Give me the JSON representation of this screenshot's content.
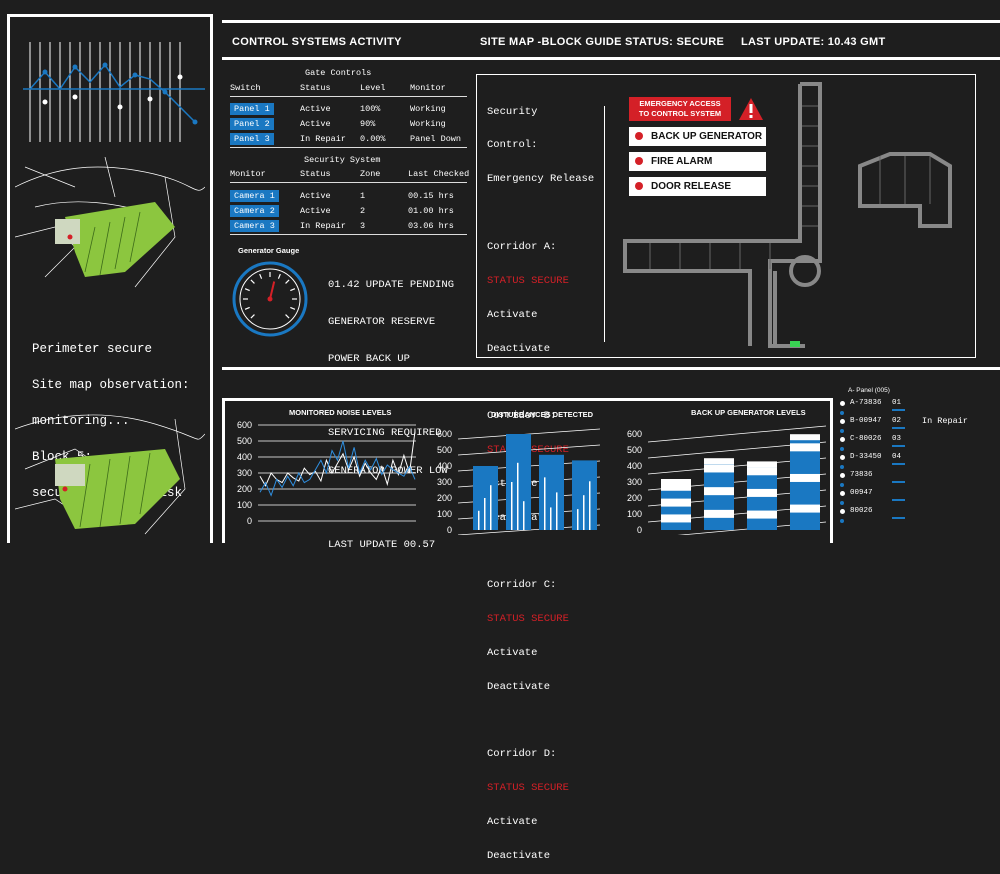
{
  "header": {
    "control": "CONTROL SYSTEMS ACTIVITY",
    "sitemap": "SITE MAP -BLOCK GUIDE",
    "status": "STATUS: SECURE",
    "last_update": "LAST UPDATE: 10.43 GMT"
  },
  "left_text": {
    "line1": "Perimeter secure",
    "line2": "Site map observation:",
    "line3": "monitoring...",
    "line4": "Block 5:",
    "line5": "security breach risk"
  },
  "gate": {
    "title": "Gate Controls",
    "cols": [
      "Switch",
      "Status",
      "Level",
      "Monitor"
    ],
    "rows": [
      {
        "name": "Panel 1",
        "status": "Active",
        "level": "100%",
        "monitor": "Working"
      },
      {
        "name": "Panel 2",
        "status": "Active",
        "level": "90%",
        "monitor": "Working"
      },
      {
        "name": "Panel 3",
        "status": "In Repair",
        "level": "0.00%",
        "monitor": "Panel Down"
      }
    ]
  },
  "security": {
    "title": "Security System",
    "cols": [
      "Monitor",
      "Status",
      "Zone",
      "Last Checked"
    ],
    "rows": [
      {
        "name": "Camera 1",
        "status": "Active",
        "zone": "1",
        "checked": "00.15 hrs"
      },
      {
        "name": "Camera 2",
        "status": "Active",
        "zone": "2",
        "checked": "01.00 hrs"
      },
      {
        "name": "Camera 3",
        "status": "In Repair",
        "zone": "3",
        "checked": "03.06 hrs"
      }
    ]
  },
  "generator": {
    "title": "Generator Gauge",
    "gauge_level": 0.55,
    "line1": "01.42 UPDATE PENDING",
    "line2": "GENERATOR RESERVE",
    "line3": "POWER BACK UP",
    "line4": "SERVICING REQUIRED",
    "line5": "GENERATOR POWER LOW",
    "line6": "LAST UPDATE 00.57"
  },
  "security_control": {
    "line1": "Security",
    "line2": "Control:",
    "line3": "Emergency Release",
    "corridors": [
      {
        "name": "Corridor A:",
        "status": "STATUS SECURE",
        "activate": "Activate",
        "deactivate": "Deactivate"
      },
      {
        "name": "Corridor B:",
        "status": "STATUS SECURE",
        "activate": "Activate",
        "deactivate": "Deactivate"
      },
      {
        "name": "Corridor C:",
        "status": "STATUS SECURE",
        "activate": "Activate",
        "deactivate": "Deactivate"
      },
      {
        "name": "Corridor D:",
        "status": "STATUS SECURE",
        "activate": "Activate",
        "deactivate": "Deactivate"
      }
    ]
  },
  "emergency": {
    "title1": "EMERGENCY ACCESS",
    "title2": "TO CONTROL SYSTEM",
    "buttons": [
      "BACK UP GENERATOR",
      "FIRE ALARM",
      "DOOR RELEASE"
    ]
  },
  "charts": {
    "noise": {
      "title": "MONITORED NOISE LEVELS",
      "yticks": [
        "600",
        "500",
        "400",
        "300",
        "200",
        "100",
        "0"
      ]
    },
    "disturbances": {
      "title": "DISTURBANCES DETECTED",
      "yticks": [
        "600",
        "500",
        "400",
        "300",
        "200",
        "100",
        "0"
      ]
    },
    "backup": {
      "title": "BACK UP GENERATOR LEVELS",
      "yticks": [
        "600",
        "500",
        "400",
        "300",
        "200",
        "100",
        "0"
      ]
    }
  },
  "chart_data": [
    {
      "type": "line",
      "title": "MONITORED NOISE LEVELS",
      "ylim": [
        0,
        600
      ],
      "series": [
        {
          "values": [
            280,
            220,
            300,
            260,
            240,
            300,
            270,
            250,
            330,
            290,
            310,
            250,
            380,
            300,
            360,
            420,
            320,
            400,
            280,
            360,
            300,
            260,
            340,
            230,
            380,
            290,
            410,
            300,
            560
          ]
        },
        {
          "values": [
            180,
            240,
            160,
            260,
            210,
            280,
            220,
            300,
            240,
            260,
            320,
            380,
            300,
            440,
            380,
            500,
            330,
            460,
            300,
            380,
            320,
            390,
            290,
            350,
            320,
            300,
            280,
            340,
            260
          ]
        }
      ]
    },
    {
      "type": "bar",
      "title": "DISTURBANCES DETECTED",
      "ylim": [
        0,
        600
      ],
      "values": [
        400,
        600,
        470,
        435
      ]
    },
    {
      "type": "bar",
      "title": "BACK UP GENERATOR LEVELS",
      "ylim": [
        0,
        600
      ],
      "values": [
        300,
        430,
        410,
        580
      ]
    }
  ],
  "panel_list": {
    "title": "A- Panel (005)",
    "items": [
      {
        "code": "A-73836",
        "num": "01"
      },
      {
        "code": "B-00947",
        "num": "02"
      },
      {
        "code": "C-80026",
        "num": "03"
      },
      {
        "code": "D-33450",
        "num": "04"
      },
      {
        "code": "73836",
        "num": ""
      },
      {
        "code": "00947",
        "num": ""
      },
      {
        "code": "80026",
        "num": ""
      }
    ],
    "status": "In Repair"
  },
  "colors": {
    "accent": "#1a78c2",
    "alert": "#d42027",
    "map_green": "#8cc63f",
    "background": "#1e1e1e"
  }
}
